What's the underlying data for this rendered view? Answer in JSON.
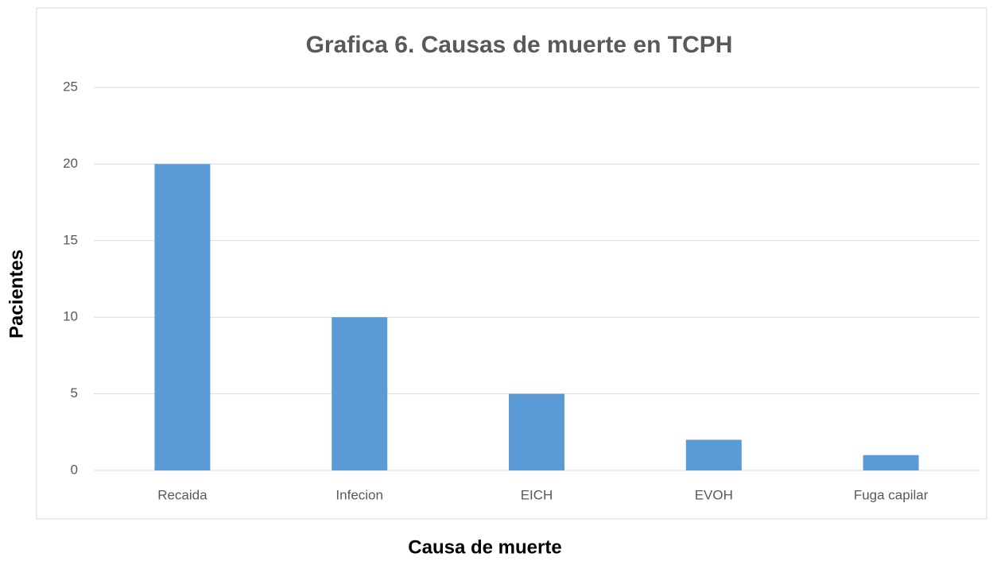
{
  "chart_data": {
    "type": "bar",
    "title": "Grafica 6. Causas de muerte en TCPH",
    "x_label": "Causa de muerte",
    "y_label": "Pacientes",
    "categories": [
      "Recaida",
      "Infecion",
      "EICH",
      "EVOH",
      "Fuga capilar"
    ],
    "values": [
      20,
      10,
      5,
      2,
      1
    ],
    "color": "#5b9bd5",
    "ylim": [
      0,
      25
    ],
    "yticks": [
      0,
      5,
      10,
      15,
      20,
      25
    ],
    "grid": true
  }
}
